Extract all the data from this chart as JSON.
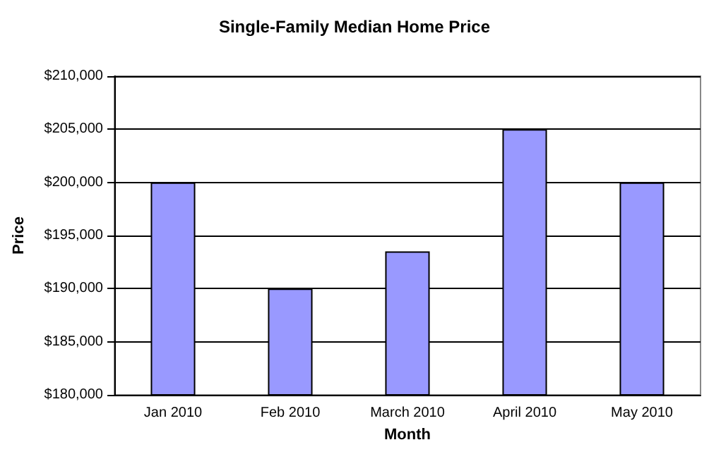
{
  "chart_data": {
    "type": "bar",
    "title": "Single-Family Median Home Price",
    "xlabel": "Month",
    "ylabel": "Price",
    "categories": [
      "Jan 2010",
      "Feb 2010",
      "March 2010",
      "April 2010",
      "May 2010"
    ],
    "values": [
      200000,
      190000,
      193500,
      205000,
      200000
    ],
    "color": "#9999ff",
    "ylim": [
      180000,
      210000
    ],
    "yticks": [
      {
        "value": 180000,
        "label": "$180,000"
      },
      {
        "value": 185000,
        "label": "$185,000"
      },
      {
        "value": 190000,
        "label": "$190,000"
      },
      {
        "value": 195000,
        "label": "$195,000"
      },
      {
        "value": 200000,
        "label": "$200,000"
      },
      {
        "value": 205000,
        "label": "$205,000"
      },
      {
        "value": 210000,
        "label": "$210,000"
      }
    ],
    "grid": "y"
  }
}
